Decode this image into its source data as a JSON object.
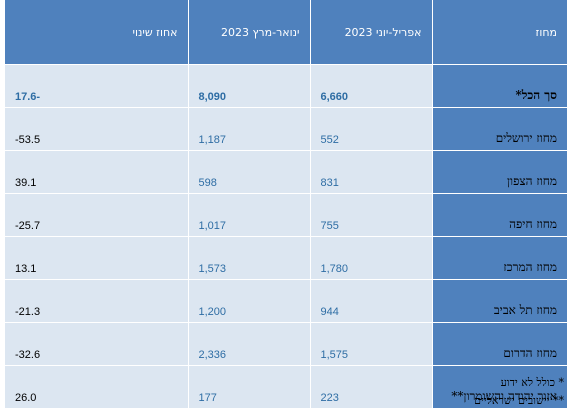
{
  "table": {
    "headers": {
      "district": "מחוז",
      "q2": "אפריל-יוני 2023",
      "q1": "ינואר-מרץ 2023",
      "change": "אחוז שינוי"
    },
    "rows": [
      {
        "district": "סך הכל*",
        "q2": "6,660",
        "q1": "8,090",
        "change": "-17.6"
      },
      {
        "district": "מחוז ירושלים",
        "q2": "552",
        "q1": "1,187",
        "change": "53.5-"
      },
      {
        "district": "מחוז הצפון",
        "q2": "831",
        "q1": "598",
        "change": "39.1"
      },
      {
        "district": "מחוז חיפה",
        "q2": "755",
        "q1": "1,017",
        "change": "25.7-"
      },
      {
        "district": "מחוז המרכז",
        "q2": "1,780",
        "q1": "1,573",
        "change": "13.1"
      },
      {
        "district": "מחוז תל אביב",
        "q2": "944",
        "q1": "1,200",
        "change": "21.3-"
      },
      {
        "district": "מחוז הדרום",
        "q2": "1,575",
        "q1": "2,336",
        "change": "32.6-"
      },
      {
        "district": "אזור יהודה והשומרון**",
        "q2": "223",
        "q1": "177",
        "change": "26.0"
      }
    ]
  },
  "footnotes": [
    "* כולל לא ידוע",
    "** יישובים ישראליים"
  ],
  "colors": {
    "header_bg": "#4f81bd",
    "cell_bg": "#dce6f1",
    "number_text": "#2e6da4"
  }
}
